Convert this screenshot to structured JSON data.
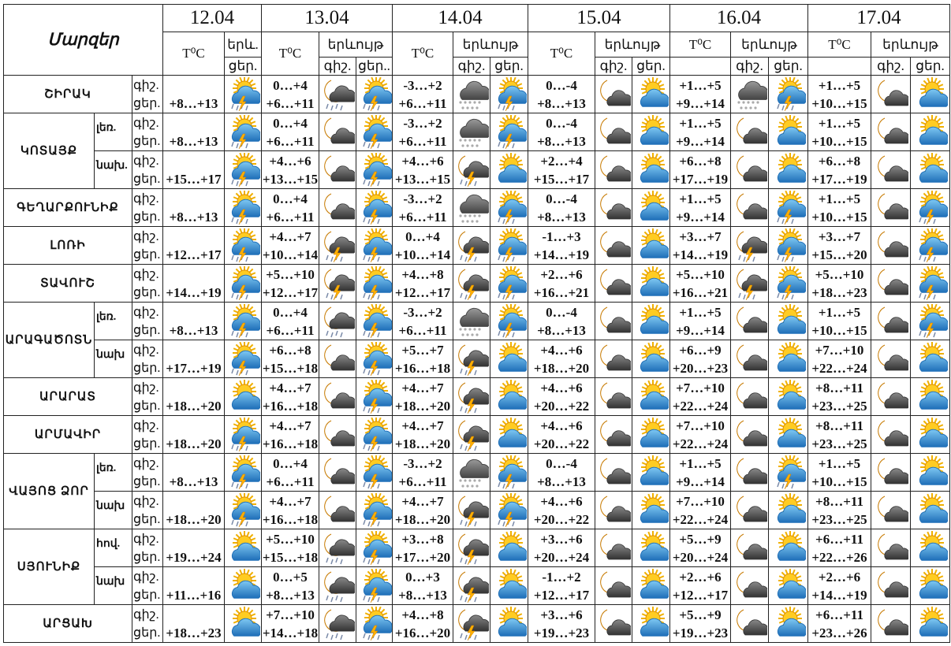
{
  "header": {
    "regions_label": "Մարզեր",
    "temp_label": "T⁰C",
    "phenomenon_label": "երևույթ",
    "phenomenon_short": "երև.",
    "night_label": "գիշ.",
    "day_label": "ցեր.",
    "day_label_alt": "ցեր..",
    "dates": [
      "12.04",
      "13.04",
      "14.04",
      "15.04",
      "16.04",
      "17.04"
    ]
  },
  "icon_types": {
    "T": "sun-cloud-thunder-rain-icon",
    "S": "sun-cloud-icon",
    "M": "moon-cloud-icon",
    "MR": "moon-cloud-rain-icon",
    "MT": "moon-cloud-thunder-rain-icon",
    "SN": "cloud-sleet-icon"
  },
  "regions": [
    {
      "name": "ՇԻՐԱԿ",
      "subs": [
        {
          "label": "",
          "d12": "+8…+13",
          "i12": "T",
          "days": [
            [
              "0…+4",
              "+6…+11",
              "MR",
              "T"
            ],
            [
              "-3…+2",
              "+6…+11",
              "SN",
              "T"
            ],
            [
              "0…-4",
              "+8…+13",
              "M",
              "S"
            ],
            [
              "+1…+5",
              "+9…+14",
              "SN",
              "T"
            ],
            [
              "+1…+5",
              "+10…+15",
              "M",
              "S"
            ]
          ]
        }
      ]
    },
    {
      "name": "ԿՈՏԱՅՔ",
      "subs": [
        {
          "label": "լեռ.",
          "d12": "+8…+13",
          "i12": "T",
          "days": [
            [
              "0…+4",
              "+6…+11",
              "M",
              "T"
            ],
            [
              "-3…+2",
              "+6…+11",
              "SN",
              "T"
            ],
            [
              "0…-4",
              "+8…+13",
              "M",
              "S"
            ],
            [
              "+1…+5",
              "+9…+14",
              "M",
              "S"
            ],
            [
              "+1…+5",
              "+10…+15",
              "M",
              "S"
            ]
          ]
        },
        {
          "label": "նախ.",
          "d12": "+15…+17",
          "i12": "T",
          "days": [
            [
              "+4…+6",
              "+13…+15",
              "M",
              "T"
            ],
            [
              "+4…+6",
              "+13…+15",
              "MT",
              "S"
            ],
            [
              "+2…+4",
              "+15…+17",
              "M",
              "S"
            ],
            [
              "+6…+8",
              "+17…+19",
              "M",
              "S"
            ],
            [
              "+6…+8",
              "+17…+19",
              "M",
              "S"
            ]
          ]
        }
      ]
    },
    {
      "name": "ԳԵՂԱՐՔՈՒՆԻՔ",
      "subs": [
        {
          "label": "",
          "d12": "+8…+13",
          "i12": "T",
          "days": [
            [
              "0…+4",
              "+6…+11",
              "M",
              "T"
            ],
            [
              "-3…+2",
              "+6…+11",
              "SN",
              "T"
            ],
            [
              "0…-4",
              "+8…+13",
              "M",
              "S"
            ],
            [
              "+1…+5",
              "+9…+14",
              "M",
              "T"
            ],
            [
              "+1…+5",
              "+10…+15",
              "M",
              "T"
            ]
          ]
        }
      ]
    },
    {
      "name": "ԼՈՌԻ",
      "subs": [
        {
          "label": "",
          "d12": "+12…+17",
          "i12": "T",
          "days": [
            [
              "+4…+7",
              "+10…+14",
              "MT",
              "T"
            ],
            [
              "0…+4",
              "+10…+14",
              "MT",
              "T"
            ],
            [
              "-1…+3",
              "+14…+19",
              "M",
              "S"
            ],
            [
              "+3…+7",
              "+14…+19",
              "MT",
              "T"
            ],
            [
              "+3…+7",
              "+15…+20",
              "M",
              "T"
            ]
          ]
        }
      ]
    },
    {
      "name": "ՏԱՎՈՒՇ",
      "subs": [
        {
          "label": "",
          "d12": "+14…+19",
          "i12": "T",
          "days": [
            [
              "+5…+10",
              "+12…+17",
              "MT",
              "T"
            ],
            [
              "+4…+8",
              "+12…+17",
              "MT",
              "T"
            ],
            [
              "+2…+6",
              "+16…+21",
              "M",
              "S"
            ],
            [
              "+5…+10",
              "+16…+21",
              "MT",
              "T"
            ],
            [
              "+5…+10",
              "+18…+23",
              "M",
              "T"
            ]
          ]
        }
      ]
    },
    {
      "name": "ԱՐԱԳԱԾՈՏՆ",
      "subs": [
        {
          "label": "լեռ.",
          "d12": "+8…+13",
          "i12": "T",
          "days": [
            [
              "0…+4",
              "+6…+11",
              "MR",
              "T"
            ],
            [
              "-3…+2",
              "+6…+11",
              "SN",
              "T"
            ],
            [
              "0…-4",
              "+8…+13",
              "M",
              "S"
            ],
            [
              "+1…+5",
              "+9…+14",
              "M",
              "S"
            ],
            [
              "+1…+5",
              "+10…+15",
              "M",
              "T"
            ]
          ]
        },
        {
          "label": "նախ",
          "d12": "+17…+19",
          "i12": "T",
          "days": [
            [
              "+6…+8",
              "+15…+18",
              "M",
              "T"
            ],
            [
              "+5…+7",
              "+16…+18",
              "MT",
              "S"
            ],
            [
              "+4…+6",
              "+18…+20",
              "M",
              "S"
            ],
            [
              "+6…+9",
              "+20…+23",
              "M",
              "S"
            ],
            [
              "+7…+10",
              "+22…+24",
              "M",
              "S"
            ]
          ]
        }
      ]
    },
    {
      "name": "ԱՐԱՐԱՏ",
      "subs": [
        {
          "label": "",
          "d12": "+18…+20",
          "i12": "S",
          "days": [
            [
              "+4…+7",
              "+16…+18",
              "M",
              "T"
            ],
            [
              "+4…+7",
              "+18…+20",
              "MT",
              "S"
            ],
            [
              "+4…+6",
              "+20…+22",
              "M",
              "S"
            ],
            [
              "+7…+10",
              "+22…+24",
              "M",
              "S"
            ],
            [
              "+8…+11",
              "+23…+25",
              "M",
              "S"
            ]
          ]
        }
      ]
    },
    {
      "name": "ԱՐՄԱՎԻՐ",
      "subs": [
        {
          "label": "",
          "d12": "+18…+20",
          "i12": "T",
          "days": [
            [
              "+4…+7",
              "+16…+18",
              "M",
              "T"
            ],
            [
              "+4…+7",
              "+18…+20",
              "MT",
              "S"
            ],
            [
              "+4…+6",
              "+20…+22",
              "M",
              "S"
            ],
            [
              "+7…+10",
              "+22…+24",
              "M",
              "S"
            ],
            [
              "+8…+11",
              "+23…+25",
              "M",
              "S"
            ]
          ]
        }
      ]
    },
    {
      "name": "ՎԱՅՈՑ ՁՈՐ",
      "subs": [
        {
          "label": "լեռ.",
          "d12": "+8…+13",
          "i12": "T",
          "days": [
            [
              "0…+4",
              "+6…+11",
              "M",
              "T"
            ],
            [
              "-3…+2",
              "+6…+11",
              "SN",
              "T"
            ],
            [
              "0…-4",
              "+8…+13",
              "M",
              "S"
            ],
            [
              "+1…+5",
              "+9…+14",
              "M",
              "T"
            ],
            [
              "+1…+5",
              "+10…+15",
              "M",
              "S"
            ]
          ]
        },
        {
          "label": "նախ",
          "d12": "+18…+20",
          "i12": "T",
          "days": [
            [
              "+4…+7",
              "+16…+18",
              "M",
              "T"
            ],
            [
              "+4…+7",
              "+18…+20",
              "MT",
              "T"
            ],
            [
              "+4…+6",
              "+20…+22",
              "M",
              "S"
            ],
            [
              "+7…+10",
              "+22…+24",
              "M",
              "S"
            ],
            [
              "+8…+11",
              "+23…+25",
              "M",
              "S"
            ]
          ]
        }
      ]
    },
    {
      "name": "ՍՅՈՒՆԻՔ",
      "subs": [
        {
          "label": "հով.",
          "d12": "+19…+24",
          "i12": "S",
          "days": [
            [
              "+5…+10",
              "+15…+18",
              "MR",
              "T"
            ],
            [
              "+3…+8",
              "+17…+20",
              "MT",
              "S"
            ],
            [
              "+3…+6",
              "+20…+24",
              "M",
              "S"
            ],
            [
              "+5…+9",
              "+20…+24",
              "M",
              "S"
            ],
            [
              "+6…+11",
              "+22…+26",
              "M",
              "S"
            ]
          ]
        },
        {
          "label": "նախ",
          "d12": "+11…+16",
          "i12": "S",
          "days": [
            [
              "0…+5",
              "+8…+13",
              "MR",
              "T"
            ],
            [
              "0…+3",
              "+8…+13",
              "MT",
              "S"
            ],
            [
              "-1…+2",
              "+12…+17",
              "M",
              "S"
            ],
            [
              "+2…+6",
              "+12…+17",
              "M",
              "S"
            ],
            [
              "+2…+6",
              "+14…+19",
              "M",
              "S"
            ]
          ]
        }
      ]
    },
    {
      "name": "ԱՐՑԱԽ",
      "subs": [
        {
          "label": "",
          "d12": "+18…+23",
          "i12": "S",
          "days": [
            [
              "+7…+10",
              "+14…+18",
              "MR",
              "T"
            ],
            [
              "+4…+8",
              "+16…+20",
              "MT",
              "S"
            ],
            [
              "+3…+6",
              "+19…+23",
              "M",
              "S"
            ],
            [
              "+5…+9",
              "+19…+23",
              "M",
              "S"
            ],
            [
              "+6…+11",
              "+23…+26",
              "M",
              "S"
            ]
          ]
        }
      ]
    }
  ]
}
